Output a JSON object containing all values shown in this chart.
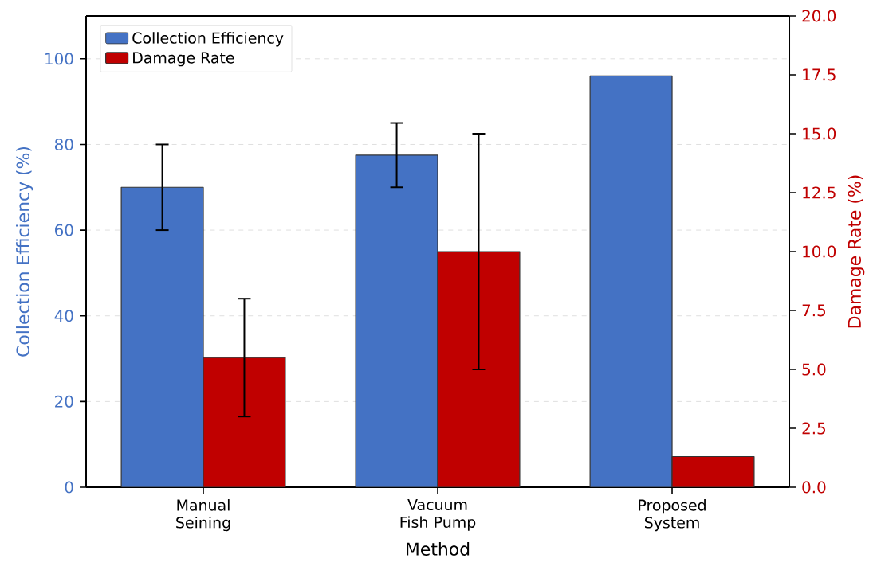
{
  "chart_data": {
    "type": "bar",
    "xlabel": "Method",
    "ylabel": "Collection Efficiency (%)",
    "y2label": "Damage Rate (%)",
    "categories": [
      "Manual Seining",
      "Vacuum Fish Pump",
      "Proposed System"
    ],
    "series": [
      {
        "name": "Collection Efficiency",
        "color": "#4472c4",
        "values": [
          70,
          77.5,
          96
        ],
        "errors": [
          10,
          7.5,
          null
        ]
      },
      {
        "name": "Damage Rate",
        "color": "#c00000",
        "values": [
          5.5,
          10,
          1.3
        ],
        "errors": [
          2.5,
          5,
          null
        ],
        "axis": "y2"
      }
    ],
    "ylim": [
      0,
      110
    ],
    "yticks": [
      0,
      20,
      40,
      60,
      80,
      100
    ],
    "y2lim": [
      0,
      20
    ],
    "y2ticks": [
      {
        "value": 0,
        "label": "0.0"
      },
      {
        "value": 2.5,
        "label": "2.5"
      },
      {
        "value": 5,
        "label": "5.0"
      },
      {
        "value": 7.5,
        "label": "7.5"
      },
      {
        "value": 10,
        "label": "10.0"
      },
      {
        "value": 12.5,
        "label": "12.5"
      },
      {
        "value": 15,
        "label": "15.0"
      },
      {
        "value": 17.5,
        "label": "17.5"
      },
      {
        "value": 20,
        "label": "20.0"
      }
    ],
    "grid": "y",
    "legend": "top left"
  }
}
